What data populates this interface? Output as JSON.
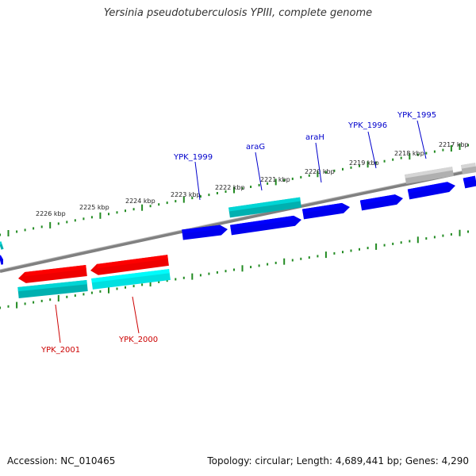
{
  "title": "Yersinia pseudotuberculosis YPIII, complete genome",
  "footer": {
    "accession": "Accession: NC_010465",
    "summary": "Topology: circular; Length: 4,689,441 bp; Genes: 4,290"
  },
  "scale": {
    "unit": "kbp",
    "ticks": [
      "2226 kbp",
      "2225 kbp",
      "2224 kbp",
      "2223 kbp",
      "2222 kbp",
      "2221 kbp",
      "2220 kbp",
      "2219 kbp",
      "2218 kbp",
      "2217 kbp"
    ]
  },
  "colors": {
    "forward_cds": "#0000ee",
    "forward_gene": "#00b0b0",
    "reverse_cds": "#ee0000",
    "reverse_gene": "#00e0e0",
    "pseudo": "#b0b0b0",
    "backbone": "#808080",
    "ticks": "#228b22",
    "forward_label": "#0000cc",
    "reverse_label": "#cc0000"
  },
  "forward_labels": [
    {
      "name": "YPK_1999"
    },
    {
      "name": "araG"
    },
    {
      "name": "araH"
    },
    {
      "name": "YPK_1996"
    },
    {
      "name": "YPK_1995"
    }
  ],
  "reverse_labels": [
    {
      "name": "YPK_2001"
    },
    {
      "name": "YPK_2000"
    }
  ]
}
